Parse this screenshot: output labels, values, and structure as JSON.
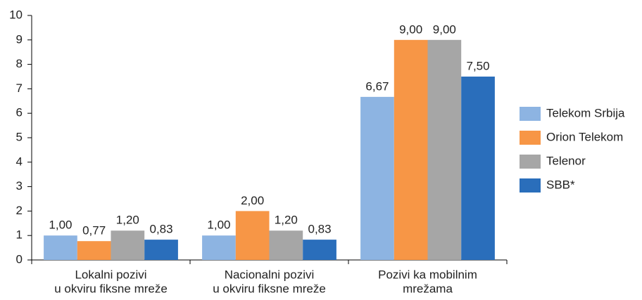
{
  "chart_data": {
    "type": "bar",
    "categories": [
      [
        "Lokalni pozivi",
        "u okviru fiksne mreže"
      ],
      [
        "Nacionalni pozivi",
        "u okviru fiksne mreže"
      ],
      [
        "Pozivi ka mobilnim",
        "mrežama"
      ]
    ],
    "series": [
      {
        "name": "Telekom Srbija",
        "color": "#8db4e2",
        "values": [
          1.0,
          1.0,
          6.67
        ],
        "value_labels": [
          "1,00",
          "1,00",
          "6,67"
        ]
      },
      {
        "name": "Orion Telekom",
        "color": "#f79646",
        "values": [
          0.77,
          2.0,
          9.0
        ],
        "value_labels": [
          "0,77",
          "2,00",
          "9,00"
        ]
      },
      {
        "name": "Telenor",
        "color": "#a6a6a6",
        "values": [
          1.2,
          1.2,
          9.0
        ],
        "value_labels": [
          "1,20",
          "1,20",
          "9,00"
        ]
      },
      {
        "name": "SBB*",
        "color": "#2a6ebb",
        "values": [
          0.83,
          0.83,
          7.5
        ],
        "value_labels": [
          "0,83",
          "0,83",
          "7,50"
        ]
      }
    ],
    "ylim": [
      0,
      10
    ],
    "yticks": [
      0,
      1,
      2,
      3,
      4,
      5,
      6,
      7,
      8,
      9,
      10
    ],
    "legend": "right"
  }
}
